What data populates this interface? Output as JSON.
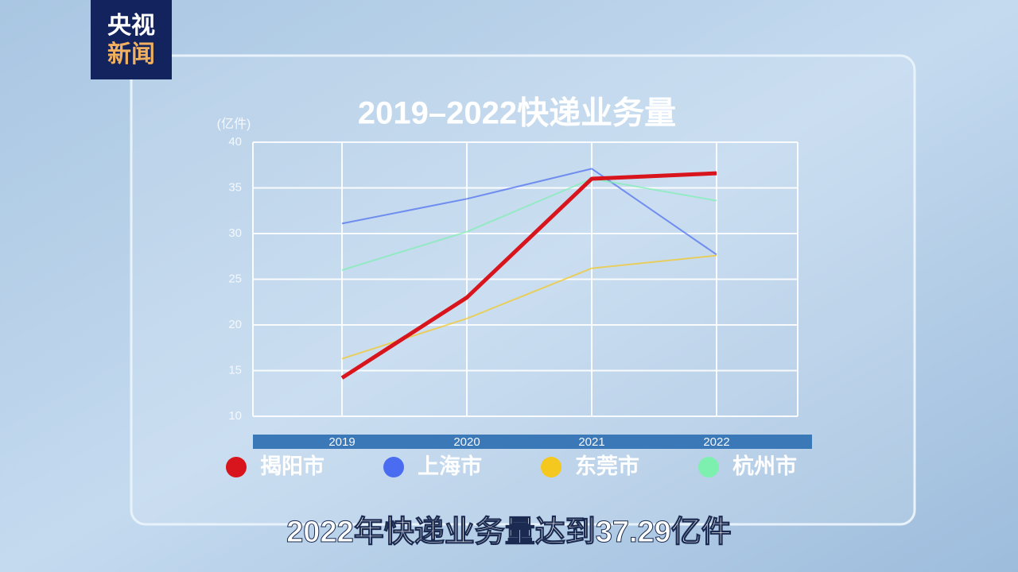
{
  "logo": [
    "央视",
    "新闻"
  ],
  "caption": "2022年快递业务量达到37.29亿件",
  "chart_data": {
    "type": "line",
    "title": "2019–2022快递业务量",
    "y_label": "(亿件)",
    "categories": [
      "2019",
      "2020",
      "2021",
      "2022"
    ],
    "series": [
      {
        "name": "揭阳市",
        "color": "#d8141c",
        "values": [
          14.2,
          23.0,
          36.0,
          36.6
        ]
      },
      {
        "name": "上海市",
        "color": "#4a6cf0",
        "values": [
          31.1,
          33.8,
          37.1,
          27.7
        ]
      },
      {
        "name": "东莞市",
        "color": "#f5c820",
        "values": [
          16.3,
          20.7,
          26.2,
          27.6
        ]
      },
      {
        "name": "杭州市",
        "color": "#7df0b0",
        "values": [
          26.0,
          30.2,
          36.0,
          33.6
        ]
      }
    ],
    "ylim": [
      10,
      40
    ],
    "yticks": [
      10,
      15,
      20,
      25,
      30,
      35,
      40
    ],
    "grid": true
  }
}
